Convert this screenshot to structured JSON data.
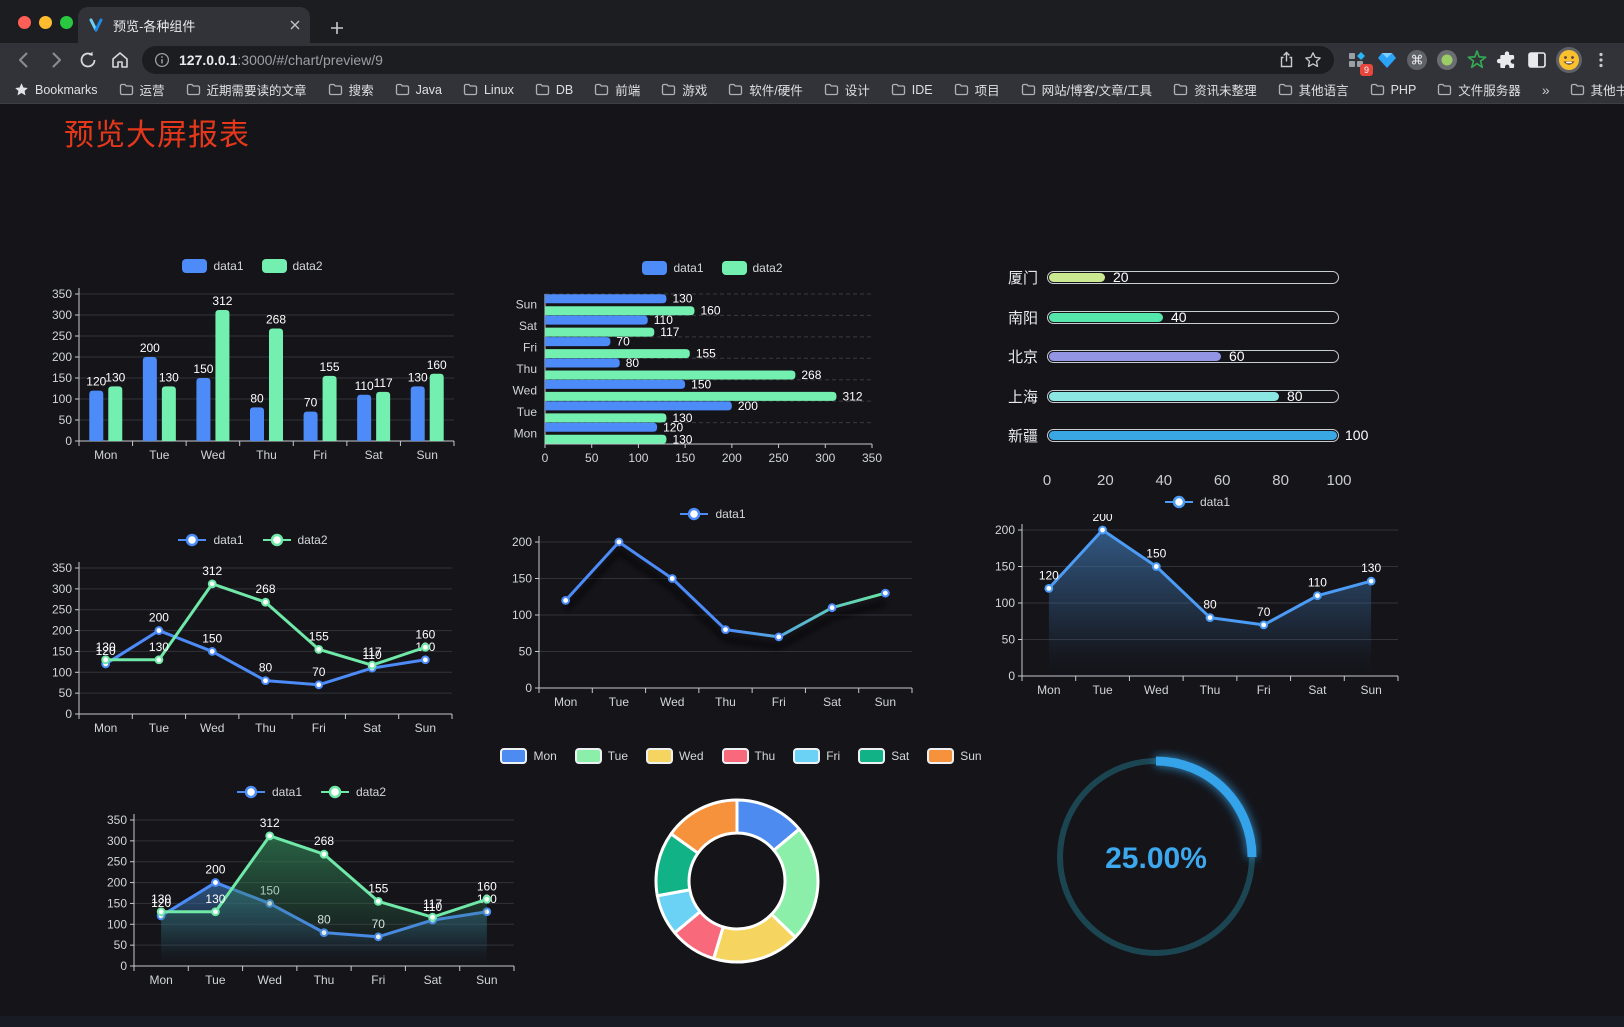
{
  "browser": {
    "tab_title": "预览-各种组件",
    "url_host": "127.0.0.1",
    "url_path": ":3000/#/chart/preview/9",
    "extension_badge": "9",
    "bookmarks_label": "Bookmarks",
    "bookmarks": [
      "运营",
      "近期需要读的文章",
      "搜索",
      "Java",
      "Linux",
      "DB",
      "前端",
      "游戏",
      "软件/硬件",
      "设计",
      "IDE",
      "项目",
      "网站/博客/文章/工具",
      "资讯未整理",
      "其他语言",
      "PHP",
      "文件服务器"
    ],
    "overflow_chevron": "»",
    "other_bookmarks": "其他书签"
  },
  "page": {
    "title": "预览大屏报表",
    "title_color": "#e5381b",
    "background": "#141419"
  },
  "chart_data": [
    {
      "id": "grouped-bar",
      "type": "bar",
      "orientation": "vertical",
      "categories": [
        "Mon",
        "Tue",
        "Wed",
        "Thu",
        "Fri",
        "Sat",
        "Sun"
      ],
      "series": [
        {
          "name": "data1",
          "color": "#4C8BF8",
          "values": [
            120,
            200,
            150,
            80,
            70,
            110,
            130
          ]
        },
        {
          "name": "data2",
          "color": "#73F0AF",
          "values": [
            130,
            130,
            312,
            268,
            155,
            117,
            160
          ]
        }
      ],
      "ylim": [
        0,
        350
      ],
      "ystep": 50,
      "show_labels": true,
      "legend_position": "top"
    },
    {
      "id": "grouped-bar-horizontal",
      "type": "bar",
      "orientation": "horizontal",
      "categories": [
        "Mon",
        "Tue",
        "Wed",
        "Thu",
        "Fri",
        "Sat",
        "Sun"
      ],
      "series": [
        {
          "name": "data1",
          "color": "#4C8BF8",
          "values": [
            120,
            200,
            150,
            80,
            70,
            110,
            130
          ]
        },
        {
          "name": "data2",
          "color": "#73F0AF",
          "values": [
            130,
            130,
            312,
            268,
            155,
            117,
            160
          ]
        }
      ],
      "xlim": [
        0,
        350
      ],
      "xstep": 50,
      "show_labels": true,
      "legend_position": "top"
    },
    {
      "id": "capsule-progress",
      "type": "progress",
      "max": 100,
      "ticks": [
        0,
        20,
        40,
        60,
        80,
        100
      ],
      "items": [
        {
          "label": "厦门",
          "value": 20,
          "color": "#C9E88F"
        },
        {
          "label": "南阳",
          "value": 40,
          "color": "#55E6AC"
        },
        {
          "label": "北京",
          "value": 60,
          "color": "#9195E4"
        },
        {
          "label": "上海",
          "value": 80,
          "color": "#8BE7E2"
        },
        {
          "label": "新疆",
          "value": 100,
          "color": "#38A7E4"
        }
      ]
    },
    {
      "id": "multi-line",
      "type": "line",
      "categories": [
        "Mon",
        "Tue",
        "Wed",
        "Thu",
        "Fri",
        "Sat",
        "Sun"
      ],
      "series": [
        {
          "name": "data1",
          "color": "#4C8BF8",
          "values": [
            120,
            200,
            150,
            80,
            70,
            110,
            130
          ]
        },
        {
          "name": "data2",
          "color": "#6FE8A8",
          "values": [
            130,
            130,
            312,
            268,
            155,
            117,
            160
          ]
        }
      ],
      "ylim": [
        0,
        350
      ],
      "ystep": 50,
      "show_labels": true
    },
    {
      "id": "gradient-line",
      "type": "line",
      "categories": [
        "Mon",
        "Tue",
        "Wed",
        "Thu",
        "Fri",
        "Sat",
        "Sun"
      ],
      "series": [
        {
          "name": "data1",
          "color": "#4C8BF8",
          "line_gradient_to": "#68E6A2",
          "values": [
            120,
            200,
            150,
            80,
            70,
            110,
            130
          ]
        }
      ],
      "ylim": [
        0,
        200
      ],
      "ystep": 50,
      "show_labels": false,
      "line_shadow": true
    },
    {
      "id": "area-line",
      "type": "line",
      "categories": [
        "Mon",
        "Tue",
        "Wed",
        "Thu",
        "Fri",
        "Sat",
        "Sun"
      ],
      "series": [
        {
          "name": "data1",
          "color": "#4C9BF5",
          "area_color": "#3C6FA6",
          "values": [
            120,
            200,
            150,
            80,
            70,
            110,
            130
          ]
        }
      ],
      "ylim": [
        0,
        200
      ],
      "ystep": 50,
      "show_labels": true
    },
    {
      "id": "multi-area-line",
      "type": "line",
      "categories": [
        "Mon",
        "Tue",
        "Wed",
        "Thu",
        "Fri",
        "Sat",
        "Sun"
      ],
      "series": [
        {
          "name": "data1",
          "color": "#4C8BF8",
          "area_color": "#35689D",
          "values": [
            120,
            200,
            150,
            80,
            70,
            110,
            130
          ]
        },
        {
          "name": "data2",
          "color": "#6FE8A8",
          "area_color": "#2F7C52",
          "values": [
            130,
            130,
            312,
            268,
            155,
            117,
            160
          ]
        }
      ],
      "ylim": [
        0,
        350
      ],
      "ystep": 50,
      "show_labels": true
    },
    {
      "id": "donut",
      "type": "pie",
      "items": [
        {
          "label": "Mon",
          "value": 120,
          "color": "#4E8BF0"
        },
        {
          "label": "Tue",
          "value": 200,
          "color": "#8BEFA9"
        },
        {
          "label": "Wed",
          "value": 150,
          "color": "#F5D55F"
        },
        {
          "label": "Thu",
          "value": 80,
          "color": "#F7697B"
        },
        {
          "label": "Fri",
          "value": 70,
          "color": "#6CD2F5"
        },
        {
          "label": "Sat",
          "value": 110,
          "color": "#12B287"
        },
        {
          "label": "Sun",
          "value": 130,
          "color": "#F6913C"
        }
      ]
    },
    {
      "id": "gauge",
      "type": "gauge",
      "percent": 25,
      "label": "25.00%",
      "color": "#36A3EA",
      "track_color": "#1C4552"
    }
  ]
}
